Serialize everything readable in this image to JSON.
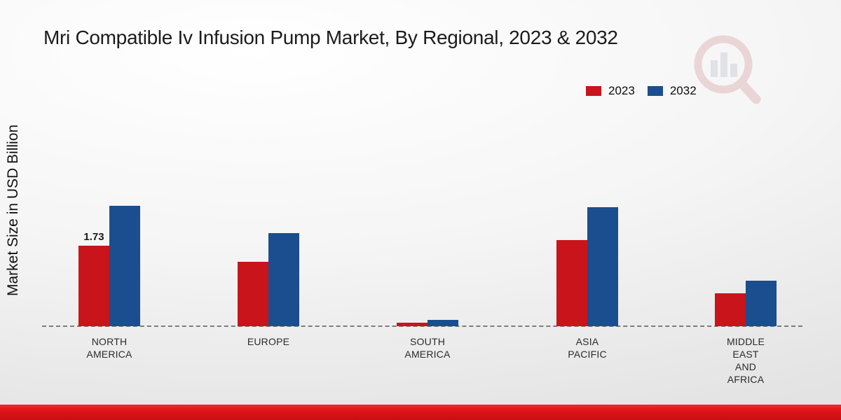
{
  "chart_data": {
    "type": "bar",
    "title": "Mri Compatible Iv Infusion Pump Market, By Regional, 2023 & 2032",
    "ylabel": "Market Size in USD Billion",
    "categories": [
      [
        "NORTH",
        "AMERICA"
      ],
      [
        "EUROPE"
      ],
      [
        "SOUTH",
        "AMERICA"
      ],
      [
        "ASIA",
        "PACIFIC"
      ],
      [
        "MIDDLE",
        "EAST",
        "AND",
        "AFRICA"
      ]
    ],
    "series": [
      {
        "name": "2023",
        "color": "#c8141a",
        "values": [
          1.73,
          1.38,
          0.07,
          1.85,
          0.7
        ]
      },
      {
        "name": "2032",
        "color": "#1b4e8e",
        "values": [
          2.58,
          2.0,
          0.14,
          2.56,
          0.97
        ]
      }
    ],
    "value_labels": [
      {
        "series_index": 0,
        "category_index": 0,
        "text": "1.73"
      }
    ],
    "ylim": [
      0,
      3
    ],
    "grid": false,
    "baseline_style": "dashed",
    "legend_position": "top-right"
  },
  "footer": {
    "accent_color": "#de1318"
  }
}
